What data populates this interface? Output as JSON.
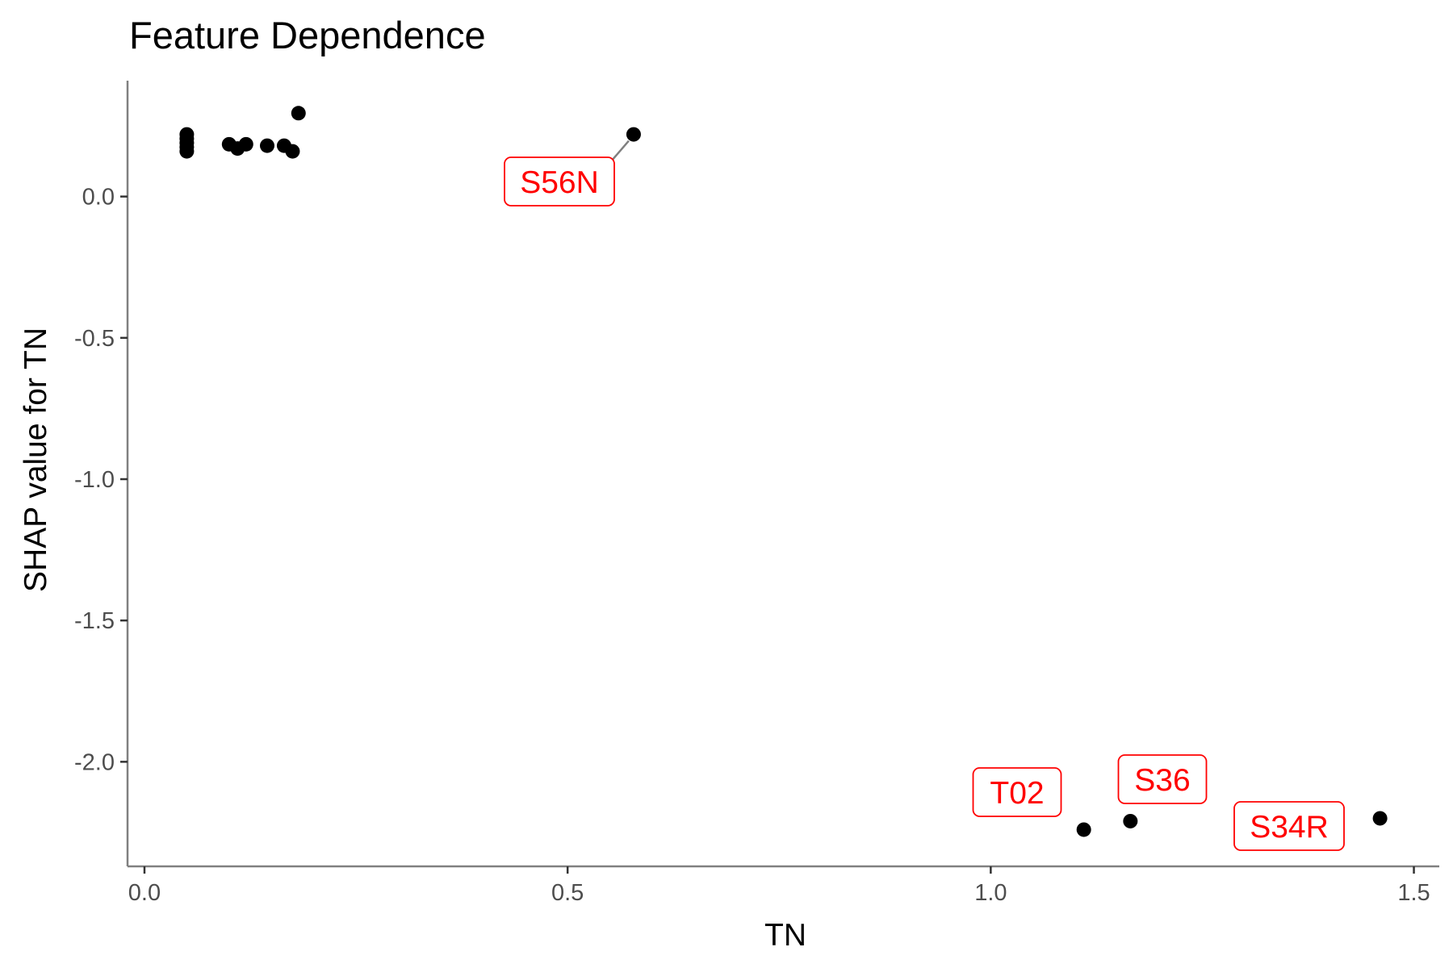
{
  "chart_data": {
    "type": "scatter",
    "title": "Feature Dependence",
    "xlabel": "TN",
    "ylabel": "SHAP value for TN",
    "xlim": [
      -0.02,
      1.53
    ],
    "ylim": [
      -2.37,
      0.41
    ],
    "x_ticks": [
      0.0,
      0.5,
      1.0,
      1.5
    ],
    "x_tick_labels": [
      "0.0",
      "0.5",
      "1.0",
      "1.5"
    ],
    "y_ticks": [
      0.0,
      -0.5,
      -1.0,
      -1.5,
      -2.0
    ],
    "y_tick_labels": [
      "0.0",
      "-0.5",
      "-1.0",
      "-1.5",
      "-2.0"
    ],
    "grid": false,
    "legend": "none",
    "colors": {
      "points": "#000000",
      "label_text": "#ff0000",
      "label_border": "#ff0000",
      "segment": "#808080",
      "axis": "#808080"
    },
    "points": [
      {
        "x": 0.05,
        "y": 0.22
      },
      {
        "x": 0.05,
        "y": 0.205
      },
      {
        "x": 0.05,
        "y": 0.19
      },
      {
        "x": 0.05,
        "y": 0.175
      },
      {
        "x": 0.05,
        "y": 0.16
      },
      {
        "x": 0.1,
        "y": 0.185
      },
      {
        "x": 0.11,
        "y": 0.17
      },
      {
        "x": 0.12,
        "y": 0.185
      },
      {
        "x": 0.145,
        "y": 0.18
      },
      {
        "x": 0.165,
        "y": 0.18
      },
      {
        "x": 0.175,
        "y": 0.16
      },
      {
        "x": 0.182,
        "y": 0.295
      },
      {
        "x": 0.578,
        "y": 0.22,
        "label": "S56N"
      },
      {
        "x": 1.11,
        "y": -2.24,
        "label": "T02"
      },
      {
        "x": 1.165,
        "y": -2.21,
        "label": "S36"
      },
      {
        "x": 1.46,
        "y": -2.2,
        "label": "S34R"
      }
    ]
  }
}
